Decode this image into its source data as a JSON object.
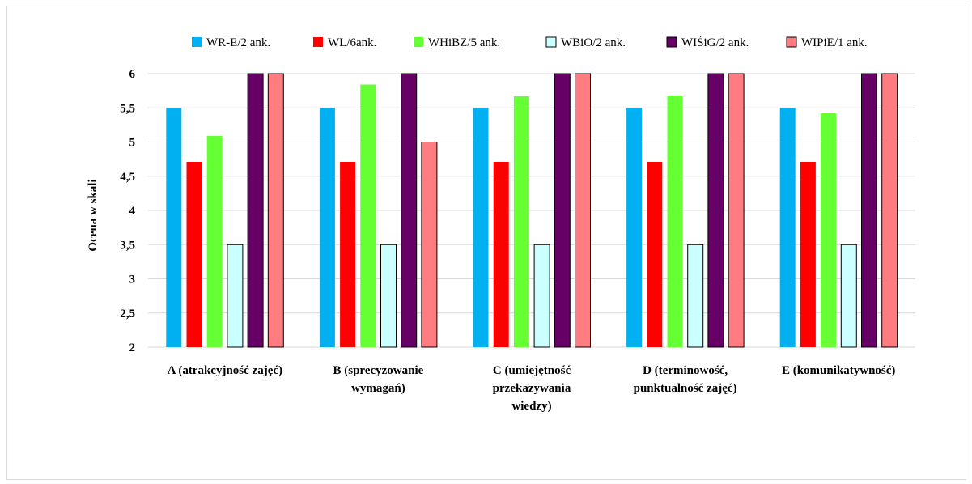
{
  "chart_data": {
    "type": "bar",
    "title": "",
    "xlabel": "",
    "ylabel": "Ocena w skali",
    "ylim": [
      2,
      6
    ],
    "yticks": [
      "2",
      "2,5",
      "3",
      "3,5",
      "4",
      "4,5",
      "5",
      "5,5",
      "6"
    ],
    "grid": true,
    "legend_position": "top",
    "categories": [
      [
        "A (atrakcyjność zajęć)"
      ],
      [
        "B (sprecyzowanie",
        "wymagań)"
      ],
      [
        "C (umiejętność",
        "przekazywania",
        "wiedzy)"
      ],
      [
        "D (terminowość,",
        "punktualność zajęć)"
      ],
      [
        "E (komunikatywność)"
      ]
    ],
    "series": [
      {
        "name": "WR-E/2 ank.",
        "color": "#00b0f0",
        "outline": false,
        "values": [
          5.5,
          5.5,
          5.5,
          5.5,
          5.5
        ]
      },
      {
        "name": "WL/6ank.",
        "color": "#ff0000",
        "outline": false,
        "values": [
          4.71,
          4.71,
          4.71,
          4.71,
          4.71
        ]
      },
      {
        "name": "WHiBZ/5 ank.",
        "color": "#66ff33",
        "outline": false,
        "values": [
          5.09,
          5.84,
          5.67,
          5.68,
          5.42
        ]
      },
      {
        "name": "WBiO/2 ank.",
        "color": "#ccffff",
        "outline": true,
        "values": [
          3.5,
          3.5,
          3.5,
          3.5,
          3.5
        ]
      },
      {
        "name": "WIŚiG/2 ank.",
        "color": "#660066",
        "outline": true,
        "values": [
          6,
          6,
          6,
          6,
          6
        ]
      },
      {
        "name": "WIPiE/1 ank.",
        "color": "#ff7c80",
        "outline": true,
        "values": [
          6,
          5,
          6,
          6,
          6
        ]
      }
    ]
  }
}
